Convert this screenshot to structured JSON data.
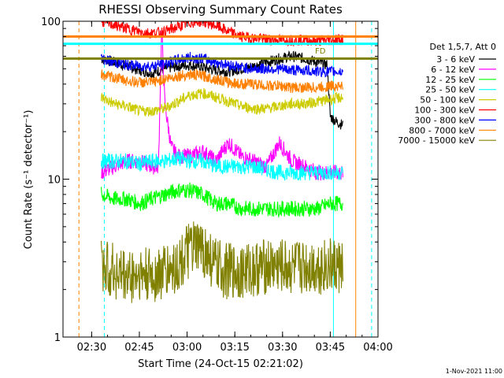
{
  "chart_data": {
    "type": "line",
    "title": "RHESSI Observing Summary Count Rates",
    "xlabel": "Start Time (24-Oct-15 02:21:02)",
    "ylabel": "Count Rate (s⁻¹ detector⁻¹)",
    "yscale": "log",
    "ylim": [
      1,
      100
    ],
    "xlim_minutes": [
      0,
      99
    ],
    "x_ticks": [
      {
        "label": "02:30",
        "minute": 9
      },
      {
        "label": "02:45",
        "minute": 24
      },
      {
        "label": "03:00",
        "minute": 39
      },
      {
        "label": "03:15",
        "minute": 54
      },
      {
        "label": "03:30",
        "minute": 69
      },
      {
        "label": "03:45",
        "minute": 84
      },
      {
        "label": "04:00",
        "minute": 99
      }
    ],
    "y_ticks": [
      {
        "label": "1",
        "value": 1
      },
      {
        "label": "10",
        "value": 10
      },
      {
        "label": "100",
        "value": 100
      }
    ],
    "legend_header": "Det 1,5,7, Att 0",
    "legend_position": "right",
    "annotation": "FD",
    "timestamp": "1-Nov-2021 11:00",
    "series": [
      {
        "name": "3 - 6 keV",
        "color": "#000000",
        "x": [
          12,
          16,
          20,
          24,
          28,
          32,
          36,
          40,
          44,
          48,
          52,
          56,
          60,
          64,
          68,
          72,
          76,
          80,
          83,
          84,
          86,
          88
        ],
        "y": [
          58,
          55,
          52,
          49,
          47,
          50,
          52,
          53,
          51,
          49,
          48,
          50,
          52,
          55,
          58,
          60,
          58,
          55,
          53,
          25,
          23,
          22
        ]
      },
      {
        "name": "6 - 12 keV",
        "color": "#ff00ff",
        "x": [
          12,
          16,
          20,
          24,
          28,
          30,
          31,
          32,
          34,
          36,
          40,
          44,
          48,
          52,
          56,
          60,
          64,
          68,
          72,
          76,
          80,
          84,
          88
        ],
        "y": [
          11,
          12,
          13,
          13,
          12,
          12,
          90,
          30,
          16,
          14,
          14,
          15,
          13,
          17,
          14,
          13,
          12,
          17,
          13,
          12,
          11,
          11,
          11
        ]
      },
      {
        "name": "12 - 25 keV",
        "color": "#00ff00",
        "x": [
          12,
          16,
          20,
          24,
          28,
          32,
          36,
          40,
          44,
          48,
          52,
          56,
          60,
          64,
          68,
          72,
          76,
          80,
          84,
          88
        ],
        "y": [
          8,
          7.5,
          7.5,
          7,
          7.5,
          8,
          8.5,
          8.5,
          8,
          7,
          7,
          6.5,
          6.5,
          6.5,
          6.5,
          6.5,
          6.5,
          6.5,
          7,
          7
        ]
      },
      {
        "name": "25 - 50 keV",
        "color": "#00ffff",
        "x": [
          12,
          16,
          20,
          24,
          28,
          32,
          36,
          40,
          44,
          48,
          52,
          56,
          60,
          64,
          68,
          72,
          76,
          80,
          84,
          88
        ],
        "y": [
          13,
          13,
          13,
          12.5,
          13,
          13,
          13.5,
          13,
          13,
          12,
          12,
          12,
          12,
          11.5,
          11,
          11,
          11,
          11,
          11,
          11
        ]
      },
      {
        "name": "50 - 100 keV",
        "color": "#cccc00",
        "x": [
          12,
          16,
          20,
          24,
          28,
          32,
          36,
          40,
          44,
          48,
          52,
          56,
          60,
          64,
          68,
          72,
          76,
          80,
          84,
          88
        ],
        "y": [
          33,
          30,
          29,
          27,
          27,
          28,
          31,
          34,
          35,
          33,
          31,
          29,
          28,
          28,
          29,
          30,
          30,
          31,
          32,
          33
        ]
      },
      {
        "name": "100 - 300 keV",
        "color": "#ff0000",
        "x": [
          12,
          16,
          20,
          24,
          28,
          32,
          36,
          40,
          44,
          48,
          52,
          56,
          60,
          64,
          68,
          72,
          76,
          80,
          84,
          88
        ],
        "y": [
          100,
          95,
          90,
          86,
          84,
          86,
          92,
          98,
          100,
          94,
          86,
          80,
          78,
          77,
          76,
          76,
          76,
          75,
          76,
          78
        ]
      },
      {
        "name": "300 - 800 keV",
        "color": "#0000ff",
        "x": [
          12,
          16,
          20,
          24,
          28,
          32,
          36,
          40,
          44,
          48,
          52,
          56,
          60,
          64,
          68,
          72,
          76,
          80,
          84,
          88
        ],
        "y": [
          58,
          55,
          53,
          52,
          52,
          54,
          57,
          59,
          58,
          55,
          53,
          51,
          50,
          50,
          50,
          49,
          49,
          48,
          48,
          48
        ]
      },
      {
        "name": "800 - 7000 keV",
        "color": "#ff8000",
        "x": [
          12,
          16,
          20,
          24,
          28,
          32,
          36,
          40,
          44,
          48,
          52,
          56,
          60,
          64,
          68,
          72,
          76,
          80,
          84,
          88
        ],
        "y": [
          46,
          44,
          42,
          41,
          41,
          43,
          45,
          46,
          45,
          43,
          41,
          40,
          40,
          39,
          39,
          38,
          38,
          38,
          39,
          39
        ]
      },
      {
        "name": "7000 - 15000 keV",
        "color": "#808000",
        "x": [
          12,
          16,
          20,
          24,
          28,
          32,
          36,
          40,
          44,
          48,
          52,
          56,
          60,
          64,
          68,
          72,
          76,
          80,
          84,
          88
        ],
        "y": [
          2.8,
          2.6,
          2.4,
          2.5,
          2.4,
          2.6,
          2.8,
          3.6,
          3.6,
          2.8,
          2.6,
          2.6,
          2.7,
          2.8,
          2.8,
          2.7,
          2.8,
          2.8,
          2.8,
          2.8
        ]
      }
    ],
    "horizontal_markers": [
      {
        "color": "#ff8000",
        "value": 80
      },
      {
        "color": "#00ffff",
        "value": 72
      },
      {
        "color": "#808000",
        "value": 58
      }
    ],
    "vertical_markers": [
      {
        "color": "#ff8000",
        "minute": 5,
        "style": "dashed"
      },
      {
        "color": "#00ffff",
        "minute": 13,
        "style": "dashed"
      },
      {
        "color": "#00ffff",
        "minute": 85,
        "style": "solid"
      },
      {
        "color": "#ff8000",
        "minute": 92,
        "style": "solid"
      },
      {
        "color": "#00ffff",
        "minute": 97,
        "style": "dashed"
      }
    ]
  }
}
